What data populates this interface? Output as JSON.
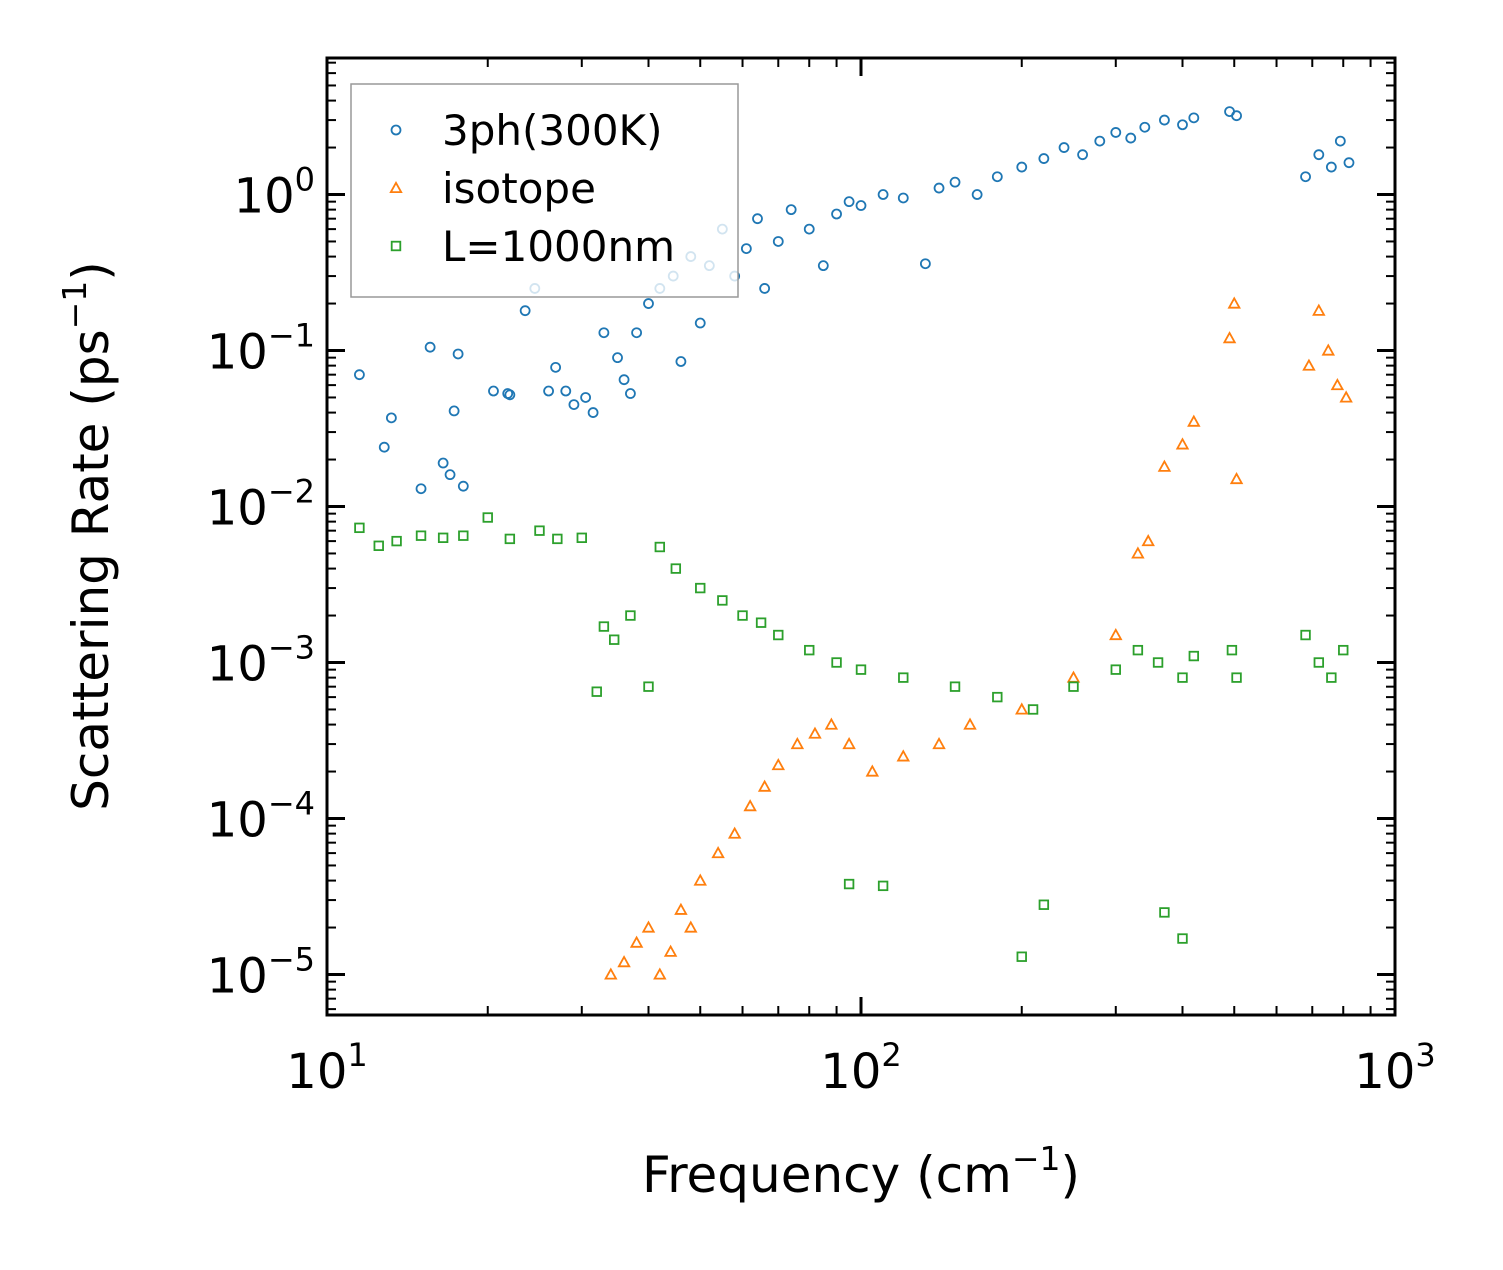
{
  "chart_data": {
    "type": "scatter",
    "title": "",
    "xlabel": {
      "main": "Frequency (cm",
      "sup": "−1",
      "end": ")"
    },
    "ylabel": {
      "main": "Scattering Rate (ps",
      "sup": "−1",
      "end": ")"
    },
    "xscale": "log",
    "yscale": "log",
    "xlim": [
      10,
      1000
    ],
    "ylim": [
      5.5e-06,
      7.5
    ],
    "xticks": [
      {
        "base": "10",
        "exp": "1",
        "value": 10
      },
      {
        "base": "10",
        "exp": "2",
        "value": 100
      },
      {
        "base": "10",
        "exp": "3",
        "value": 1000
      }
    ],
    "yticks": [
      {
        "base": "10",
        "exp": "0",
        "value": 1
      },
      {
        "base": "10",
        "exp": "−1",
        "value": 0.1
      },
      {
        "base": "10",
        "exp": "−2",
        "value": 0.01
      },
      {
        "base": "10",
        "exp": "−3",
        "value": 0.001
      },
      {
        "base": "10",
        "exp": "−4",
        "value": 0.0001
      },
      {
        "base": "10",
        "exp": "−5",
        "value": 1e-05
      }
    ],
    "legend_position": "top-left",
    "series": [
      {
        "name": "3ph(300K)",
        "marker": "circle",
        "color": "#1f77b4",
        "points": [
          [
            11.5,
            0.07
          ],
          [
            12.8,
            0.024
          ],
          [
            13.2,
            0.037
          ],
          [
            15.0,
            0.013
          ],
          [
            15.6,
            0.105
          ],
          [
            16.5,
            0.019
          ],
          [
            17.0,
            0.016
          ],
          [
            17.3,
            0.041
          ],
          [
            17.6,
            0.095
          ],
          [
            18.0,
            0.0135
          ],
          [
            20.5,
            0.055
          ],
          [
            21.8,
            0.053
          ],
          [
            22.0,
            0.052
          ],
          [
            23.5,
            0.18
          ],
          [
            24.5,
            0.25
          ],
          [
            26.0,
            0.055
          ],
          [
            26.8,
            0.078
          ],
          [
            28.0,
            0.055
          ],
          [
            29.0,
            0.045
          ],
          [
            30.5,
            0.05
          ],
          [
            31.5,
            0.04
          ],
          [
            33.0,
            0.13
          ],
          [
            35.0,
            0.09
          ],
          [
            36.0,
            0.065
          ],
          [
            37.0,
            0.053
          ],
          [
            38.0,
            0.13
          ],
          [
            40.0,
            0.2
          ],
          [
            42.0,
            0.25
          ],
          [
            44.5,
            0.3
          ],
          [
            46.0,
            0.085
          ],
          [
            48.0,
            0.4
          ],
          [
            50.0,
            0.15
          ],
          [
            52.0,
            0.35
          ],
          [
            55.0,
            0.6
          ],
          [
            58.0,
            0.3
          ],
          [
            61.0,
            0.45
          ],
          [
            64.0,
            0.7
          ],
          [
            66.0,
            0.25
          ],
          [
            70.0,
            0.5
          ],
          [
            74.0,
            0.8
          ],
          [
            80.0,
            0.6
          ],
          [
            85.0,
            0.35
          ],
          [
            90.0,
            0.75
          ],
          [
            95.0,
            0.9
          ],
          [
            100.0,
            0.85
          ],
          [
            110.0,
            1.0
          ],
          [
            120.0,
            0.95
          ],
          [
            132.0,
            0.36
          ],
          [
            140.0,
            1.1
          ],
          [
            150.0,
            1.2
          ],
          [
            165.0,
            1.0
          ],
          [
            180.0,
            1.3
          ],
          [
            200.0,
            1.5
          ],
          [
            220.0,
            1.7
          ],
          [
            240.0,
            2.0
          ],
          [
            260.0,
            1.8
          ],
          [
            280.0,
            2.2
          ],
          [
            300.0,
            2.5
          ],
          [
            320.0,
            2.3
          ],
          [
            340.0,
            2.7
          ],
          [
            370.0,
            3.0
          ],
          [
            400.0,
            2.8
          ],
          [
            420.0,
            3.1
          ],
          [
            490.0,
            3.4
          ],
          [
            505.0,
            3.2
          ],
          [
            680.0,
            1.3
          ],
          [
            720.0,
            1.8
          ],
          [
            760.0,
            1.5
          ],
          [
            790.0,
            2.2
          ],
          [
            820.0,
            1.6
          ]
        ]
      },
      {
        "name": "isotope",
        "marker": "triangle",
        "color": "#ff7f0e",
        "points": [
          [
            34.0,
            1e-05
          ],
          [
            36.0,
            1.2e-05
          ],
          [
            38.0,
            1.6e-05
          ],
          [
            40.0,
            2e-05
          ],
          [
            42.0,
            1e-05
          ],
          [
            44.0,
            1.4e-05
          ],
          [
            46.0,
            2.6e-05
          ],
          [
            48.0,
            2e-05
          ],
          [
            50.0,
            4e-05
          ],
          [
            54.0,
            6e-05
          ],
          [
            58.0,
            8e-05
          ],
          [
            62.0,
            0.00012
          ],
          [
            66.0,
            0.00016
          ],
          [
            70.0,
            0.00022
          ],
          [
            76.0,
            0.0003
          ],
          [
            82.0,
            0.00035
          ],
          [
            88.0,
            0.0004
          ],
          [
            95.0,
            0.0003
          ],
          [
            105.0,
            0.0002
          ],
          [
            120.0,
            0.00025
          ],
          [
            140.0,
            0.0003
          ],
          [
            160.0,
            0.0004
          ],
          [
            200.0,
            0.0005
          ],
          [
            250.0,
            0.0008
          ],
          [
            300.0,
            0.0015
          ],
          [
            330.0,
            0.005
          ],
          [
            345.0,
            0.006
          ],
          [
            370.0,
            0.018
          ],
          [
            400.0,
            0.025
          ],
          [
            420.0,
            0.035
          ],
          [
            490.0,
            0.12
          ],
          [
            500.0,
            0.2
          ],
          [
            505.0,
            0.015
          ],
          [
            690.0,
            0.08
          ],
          [
            720.0,
            0.18
          ],
          [
            750.0,
            0.1
          ],
          [
            780.0,
            0.06
          ],
          [
            810.0,
            0.05
          ]
        ]
      },
      {
        "name": "L=1000nm",
        "marker": "square",
        "color": "#2ca02c",
        "points": [
          [
            11.5,
            0.0073
          ],
          [
            12.5,
            0.0056
          ],
          [
            13.5,
            0.006
          ],
          [
            15.0,
            0.0065
          ],
          [
            16.5,
            0.0063
          ],
          [
            18.0,
            0.0065
          ],
          [
            20.0,
            0.0085
          ],
          [
            22.0,
            0.0062
          ],
          [
            25.0,
            0.007
          ],
          [
            27.0,
            0.0062
          ],
          [
            30.0,
            0.0063
          ],
          [
            32.0,
            0.00065
          ],
          [
            33.0,
            0.0017
          ],
          [
            34.5,
            0.0014
          ],
          [
            37.0,
            0.002
          ],
          [
            40.0,
            0.0007
          ],
          [
            42.0,
            0.0055
          ],
          [
            45.0,
            0.004
          ],
          [
            50.0,
            0.003
          ],
          [
            55.0,
            0.0025
          ],
          [
            60.0,
            0.002
          ],
          [
            65.0,
            0.0018
          ],
          [
            70.0,
            0.0015
          ],
          [
            80.0,
            0.0012
          ],
          [
            90.0,
            0.001
          ],
          [
            100.0,
            0.0009
          ],
          [
            120.0,
            0.0008
          ],
          [
            150.0,
            0.0007
          ],
          [
            180.0,
            0.0006
          ],
          [
            210.0,
            0.0005
          ],
          [
            250.0,
            0.0007
          ],
          [
            300.0,
            0.0009
          ],
          [
            330.0,
            0.0012
          ],
          [
            360.0,
            0.001
          ],
          [
            400.0,
            0.0008
          ],
          [
            420.0,
            0.0011
          ],
          [
            495.0,
            0.0012
          ],
          [
            505.0,
            0.0008
          ],
          [
            680.0,
            0.0015
          ],
          [
            720.0,
            0.001
          ],
          [
            760.0,
            0.0008
          ],
          [
            800.0,
            0.0012
          ],
          [
            95.0,
            3.8e-05
          ],
          [
            110.0,
            3.7e-05
          ],
          [
            200.0,
            1.3e-05
          ],
          [
            220.0,
            2.8e-05
          ],
          [
            370.0,
            2.5e-05
          ],
          [
            400.0,
            1.7e-05
          ]
        ]
      }
    ]
  }
}
